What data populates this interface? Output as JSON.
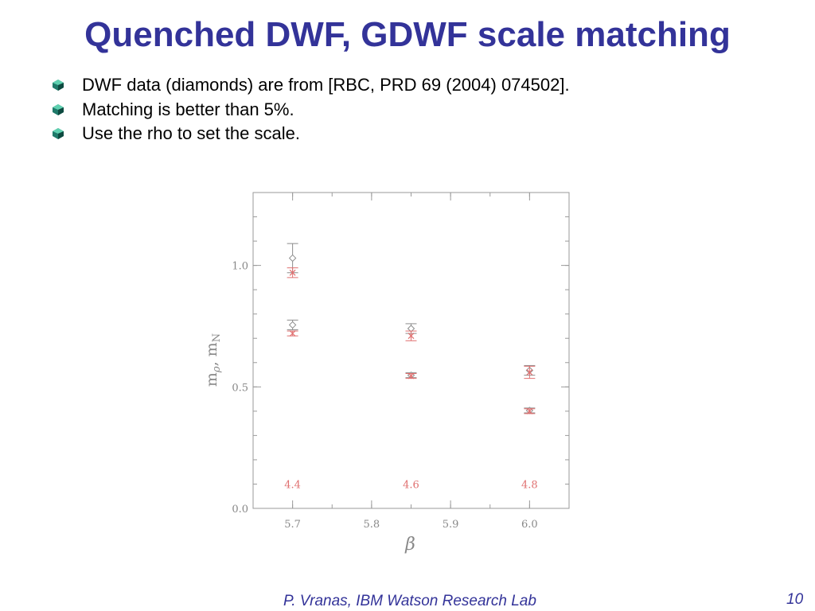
{
  "slide": {
    "title": "Quenched DWF, GDWF scale matching",
    "bullets": [
      "DWF data (diamonds) are from [RBC, PRD 69 (2004) 074502].",
      "Matching is better than 5%.",
      "Use the rho to set the scale."
    ],
    "bullet_icon": "green-gem-bullet-icon",
    "footer": "P. Vranas, IBM Watson Research Lab",
    "page_number": "10"
  },
  "colors": {
    "title": "#333399",
    "footer": "#333399",
    "diamond_series": "#8c8c8c",
    "cross_series": "#e07070",
    "axis": "#9a9a9a"
  },
  "chart_data": {
    "type": "scatter",
    "title": "",
    "xlabel": "β",
    "ylabel_parts": {
      "main": "m",
      "rho_sub": "ρ",
      "sep": ",  m",
      "n_sub": "N"
    },
    "xlim": [
      5.65,
      6.05
    ],
    "ylim": [
      0.0,
      1.3
    ],
    "x_ticks": [
      5.7,
      5.8,
      5.9,
      6.0
    ],
    "x_tick_labels": [
      "5.7",
      "5.8",
      "5.9",
      "6.0"
    ],
    "y_ticks": [
      0.0,
      0.5,
      1.0
    ],
    "y_tick_labels": [
      "0.0",
      "0.5",
      "1.0"
    ],
    "x_minor_step": 0.05,
    "y_minor_step": 0.1,
    "grid": false,
    "series": [
      {
        "marker": "diamond",
        "color": "#8c8c8c",
        "points": [
          {
            "x": 5.7,
            "y": 1.03,
            "err": 0.06
          },
          {
            "x": 5.7,
            "y": 0.755,
            "err": 0.02
          },
          {
            "x": 5.85,
            "y": 0.74,
            "err": 0.02
          },
          {
            "x": 5.85,
            "y": 0.548,
            "err": 0.01
          },
          {
            "x": 6.0,
            "y": 0.568,
            "err": 0.02
          },
          {
            "x": 6.0,
            "y": 0.403,
            "err": 0.01
          }
        ]
      },
      {
        "marker": "cross",
        "color": "#e07070",
        "points": [
          {
            "x": 5.7,
            "y": 0.97,
            "err": 0.02
          },
          {
            "x": 5.7,
            "y": 0.72,
            "err": 0.01
          },
          {
            "x": 5.85,
            "y": 0.71,
            "err": 0.02
          },
          {
            "x": 5.85,
            "y": 0.545,
            "err": 0.01
          },
          {
            "x": 6.0,
            "y": 0.56,
            "err": 0.025
          },
          {
            "x": 6.0,
            "y": 0.4,
            "err": 0.01
          }
        ]
      }
    ],
    "annotations": [
      {
        "text": "4.4",
        "x": 5.7,
        "y": 0.1,
        "color": "#e07070"
      },
      {
        "text": "4.6",
        "x": 5.85,
        "y": 0.1,
        "color": "#e07070"
      },
      {
        "text": "4.8",
        "x": 6.0,
        "y": 0.1,
        "color": "#e07070"
      }
    ]
  }
}
